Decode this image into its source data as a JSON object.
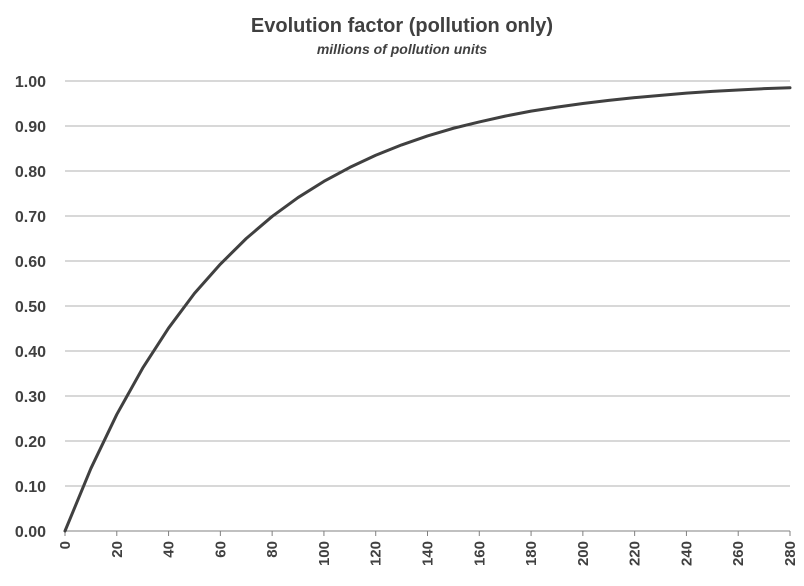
{
  "chart_data": {
    "type": "line",
    "title": "Evolution factor (pollution only)",
    "subtitle": "millions of pollution units",
    "xlabel": "",
    "ylabel": "",
    "xlim": [
      0,
      280
    ],
    "ylim": [
      0,
      1
    ],
    "x_ticks": [
      "0",
      "20",
      "40",
      "60",
      "80",
      "100",
      "120",
      "140",
      "160",
      "180",
      "200",
      "220",
      "240",
      "260",
      "280"
    ],
    "y_ticks": [
      "0.00",
      "0.10",
      "0.20",
      "0.30",
      "0.40",
      "0.50",
      "0.60",
      "0.70",
      "0.80",
      "0.90",
      "1.00"
    ],
    "grid": "horizontal",
    "legend": "none",
    "line_color": "#404040",
    "series": [
      {
        "x": [
          0,
          10,
          20,
          30,
          40,
          50,
          60,
          70,
          80,
          90,
          100,
          110,
          120,
          130,
          140,
          150,
          160,
          170,
          180,
          190,
          200,
          210,
          220,
          230,
          240,
          250,
          260,
          270,
          280
        ],
        "values": [
          0.0,
          0.139,
          0.259,
          0.362,
          0.451,
          0.528,
          0.593,
          0.65,
          0.699,
          0.741,
          0.777,
          0.808,
          0.835,
          0.858,
          0.878,
          0.895,
          0.909,
          0.922,
          0.933,
          0.942,
          0.95,
          0.957,
          0.963,
          0.968,
          0.973,
          0.977,
          0.98,
          0.983,
          0.985
        ]
      }
    ]
  }
}
